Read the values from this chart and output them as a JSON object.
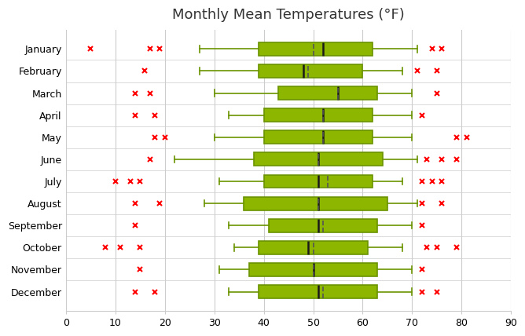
{
  "title": "Monthly Mean Temperatures (°F)",
  "months": [
    "January",
    "February",
    "March",
    "April",
    "May",
    "June",
    "July",
    "August",
    "September",
    "October",
    "November",
    "December"
  ],
  "box_data": {
    "January": {
      "whislo": 27,
      "q1": 39,
      "med": 52,
      "mean": 50,
      "q3": 62,
      "whishi": 71
    },
    "February": {
      "whislo": 27,
      "q1": 39,
      "med": 48,
      "mean": 49,
      "q3": 60,
      "whishi": 68
    },
    "March": {
      "whislo": 30,
      "q1": 43,
      "med": 55,
      "mean": 55,
      "q3": 63,
      "whishi": 70
    },
    "April": {
      "whislo": 33,
      "q1": 40,
      "med": 52,
      "mean": 52,
      "q3": 62,
      "whishi": 70
    },
    "May": {
      "whislo": 30,
      "q1": 40,
      "med": 52,
      "mean": 52,
      "q3": 62,
      "whishi": 70
    },
    "June": {
      "whislo": 22,
      "q1": 38,
      "med": 51,
      "mean": 51,
      "q3": 64,
      "whishi": 71
    },
    "July": {
      "whislo": 31,
      "q1": 40,
      "med": 51,
      "mean": 53,
      "q3": 62,
      "whishi": 68
    },
    "August": {
      "whislo": 28,
      "q1": 36,
      "med": 51,
      "mean": 51,
      "q3": 65,
      "whishi": 71
    },
    "September": {
      "whislo": 33,
      "q1": 41,
      "med": 51,
      "mean": 52,
      "q3": 63,
      "whishi": 70
    },
    "October": {
      "whislo": 34,
      "q1": 39,
      "med": 49,
      "mean": 50,
      "q3": 61,
      "whishi": 68
    },
    "November": {
      "whislo": 31,
      "q1": 37,
      "med": 50,
      "mean": 50,
      "q3": 63,
      "whishi": 70
    },
    "December": {
      "whislo": 33,
      "q1": 39,
      "med": 51,
      "mean": 52,
      "q3": 63,
      "whishi": 70
    }
  },
  "outliers": {
    "January": [
      5,
      17,
      19,
      74,
      76
    ],
    "February": [
      16,
      71,
      75
    ],
    "March": [
      14,
      17,
      75
    ],
    "April": [
      14,
      18,
      72
    ],
    "May": [
      18,
      20,
      79,
      81
    ],
    "June": [
      17,
      73,
      76,
      79
    ],
    "July": [
      10,
      13,
      15,
      72,
      74,
      76
    ],
    "August": [
      14,
      19,
      72,
      76
    ],
    "September": [
      14,
      72
    ],
    "October": [
      8,
      11,
      15,
      73,
      75,
      79
    ],
    "November": [
      15,
      72
    ],
    "December": [
      14,
      18,
      72,
      75
    ]
  },
  "xlim": [
    0,
    90
  ],
  "xticks": [
    0,
    10,
    20,
    30,
    40,
    50,
    60,
    70,
    80,
    90
  ],
  "box_facecolor": "#8DB600",
  "box_edgecolor": "#6B9300",
  "whisker_color": "#6B9300",
  "cap_color": "#6B9300",
  "median_color": "#1a1a1a",
  "mean_color": "#555555",
  "outlier_color": "red",
  "grid_color": "#cccccc",
  "background_color": "#ffffff",
  "plot_bg_color": "#ffffff",
  "title_fontsize": 13,
  "tick_fontsize": 9,
  "label_fontsize": 9,
  "box_width": 0.6,
  "linewidth": 1.2
}
